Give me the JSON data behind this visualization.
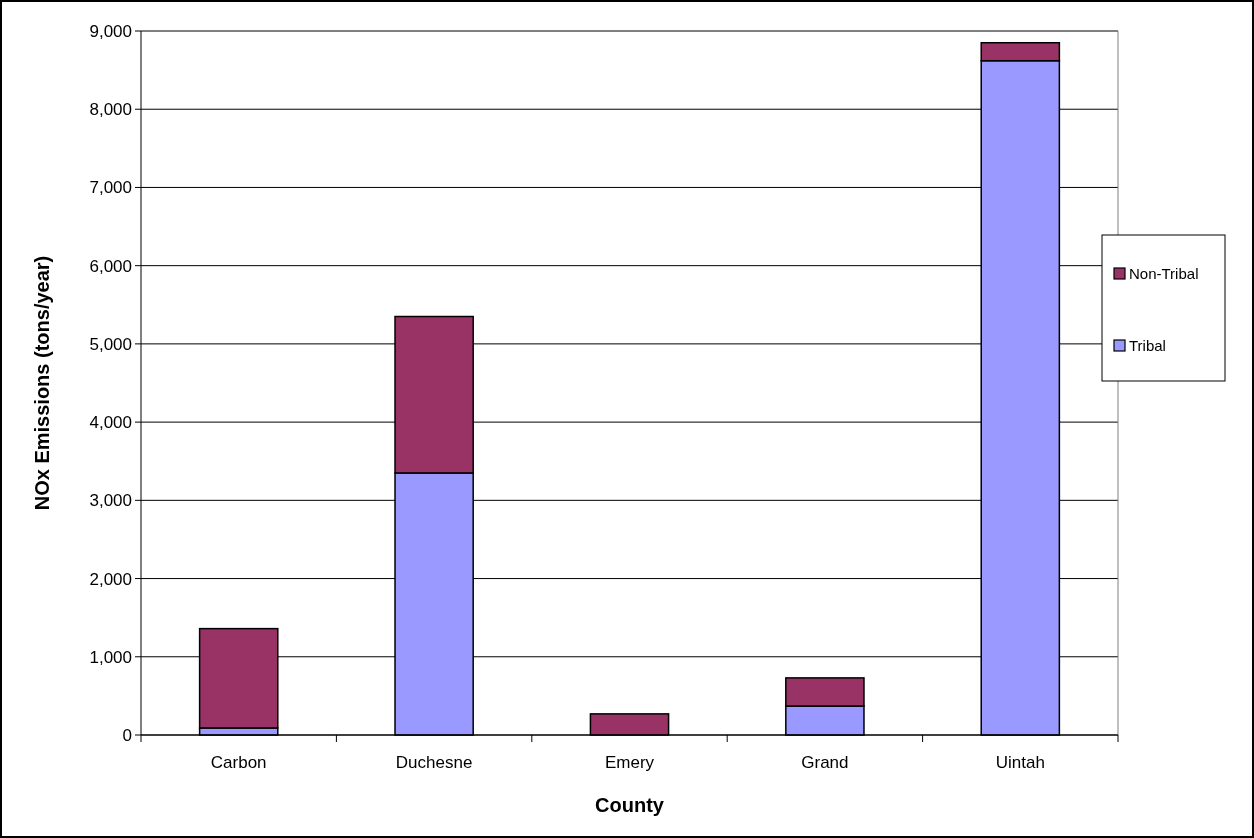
{
  "chart_data": {
    "type": "bar",
    "stacked": true,
    "xlabel": "County",
    "ylabel": "NOx Emissions (tons/year)",
    "categories": [
      "Carbon",
      "Duchesne",
      "Emery",
      "Grand",
      "Uintah"
    ],
    "series": [
      {
        "name": "Tribal",
        "color": "#9999ff",
        "values": [
          90,
          3350,
          0,
          370,
          8620
        ]
      },
      {
        "name": "Non-Tribal",
        "color": "#993366",
        "values": [
          1270,
          2000,
          270,
          360,
          230
        ]
      }
    ],
    "ylim": [
      0,
      9000
    ],
    "yticks": [
      {
        "value": 0,
        "label": "0"
      },
      {
        "value": 1000,
        "label": "1,000"
      },
      {
        "value": 2000,
        "label": "2,000"
      },
      {
        "value": 3000,
        "label": "3,000"
      },
      {
        "value": 4000,
        "label": "4,000"
      },
      {
        "value": 5000,
        "label": "5,000"
      },
      {
        "value": 6000,
        "label": "6,000"
      },
      {
        "value": 7000,
        "label": "7,000"
      },
      {
        "value": 8000,
        "label": "8,000"
      },
      {
        "value": 9000,
        "label": "9,000"
      }
    ],
    "grid": "y",
    "legend": "right"
  }
}
